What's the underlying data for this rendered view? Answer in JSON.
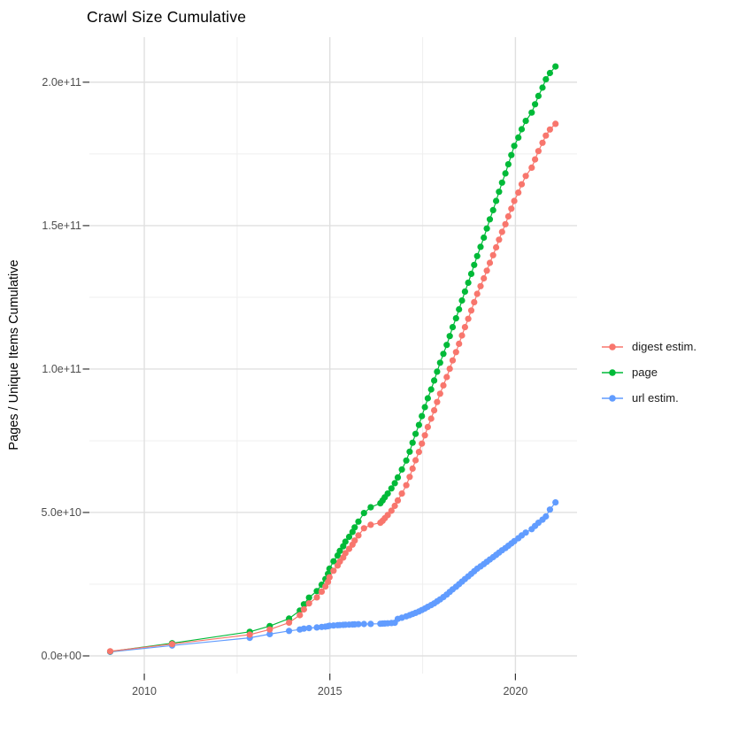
{
  "colors": {
    "background": "#FFFFFF",
    "grid_major": "#E0E0E0",
    "grid_minor": "#EFEFEF",
    "tick_mark": "#333333",
    "axis_text": "#4D4D4D",
    "title_text": "#000000"
  },
  "chart_data": {
    "type": "line",
    "title": "Crawl Size Cumulative",
    "xlabel": "",
    "ylabel": "Pages / Unique Items Cumulative",
    "legend_position": "right",
    "grid": "major+minor",
    "y_unit": "values_e9 are pages/items in billions (1e9)",
    "xlim": [
      2008.52,
      2021.66
    ],
    "ylim_e9": [
      -6.17,
      215.7
    ],
    "x_ticks": [
      {
        "v": 2010,
        "label": "2010"
      },
      {
        "v": 2015,
        "label": "2015"
      },
      {
        "v": 2020,
        "label": "2020"
      }
    ],
    "x_minor_ticks": [
      2012.5,
      2017.5
    ],
    "y_ticks": [
      {
        "v": 0,
        "label": "0.0e+00"
      },
      {
        "v": 50,
        "label": "5.0e+10"
      },
      {
        "v": 100,
        "label": "1.0e+11"
      },
      {
        "v": 150,
        "label": "1.5e+11"
      },
      {
        "v": 200,
        "label": "2.0e+11"
      }
    ],
    "y_minor_ticks_e9": [
      25,
      75,
      125,
      175
    ],
    "x_years": [
      2009.08,
      2010.75,
      2012.84,
      2013.38,
      2013.9,
      2014.19,
      2014.3,
      2014.44,
      2014.65,
      2014.78,
      2014.88,
      2014.95,
      2014.99,
      2015.1,
      2015.21,
      2015.27,
      2015.36,
      2015.42,
      2015.52,
      2015.61,
      2015.67,
      2015.77,
      2015.92,
      2016.1,
      2016.36,
      2016.42,
      2016.48,
      2016.56,
      2016.66,
      2016.75,
      2016.83,
      2016.94,
      2017.06,
      2017.15,
      2017.23,
      2017.31,
      2017.4,
      2017.48,
      2017.56,
      2017.64,
      2017.73,
      2017.81,
      2017.89,
      2017.97,
      2018.06,
      2018.15,
      2018.23,
      2018.31,
      2018.4,
      2018.48,
      2018.56,
      2018.64,
      2018.73,
      2018.81,
      2018.89,
      2018.97,
      2019.06,
      2019.15,
      2019.23,
      2019.31,
      2019.4,
      2019.48,
      2019.56,
      2019.64,
      2019.73,
      2019.81,
      2019.89,
      2019.97,
      2020.08,
      2020.17,
      2020.28,
      2020.44,
      2020.53,
      2020.62,
      2020.73,
      2020.82,
      2020.93,
      2021.08
    ],
    "series": [
      {
        "name": "digest estim.",
        "color": "#F8766D",
        "values_e9": [
          1.6,
          4.1,
          7.4,
          9.2,
          11.6,
          14.2,
          16.2,
          18.3,
          20.4,
          22.4,
          24.2,
          25.8,
          27.4,
          29.7,
          31.5,
          32.9,
          34.3,
          35.8,
          37.3,
          38.8,
          40.2,
          42,
          44.5,
          45.7,
          46.4,
          47.1,
          48,
          49.1,
          50.6,
          52.3,
          54.2,
          56.6,
          59.5,
          62.4,
          65.3,
          68.2,
          71.1,
          74,
          76.9,
          79.8,
          82.7,
          85.6,
          88.5,
          91.4,
          94.3,
          97.2,
          100.1,
          103,
          105.9,
          108.8,
          111.7,
          114.6,
          117.5,
          120.4,
          123.3,
          126.2,
          128.9,
          131.6,
          134.3,
          137,
          139.7,
          142.4,
          145.1,
          147.8,
          150.5,
          153.2,
          155.9,
          158.6,
          161.5,
          164.4,
          167.3,
          170.2,
          173.1,
          176,
          178.9,
          181.4,
          183.5,
          185.5
        ]
      },
      {
        "name": "page",
        "color": "#00BA38",
        "values_e9": [
          1.55,
          4.4,
          8.4,
          10.4,
          13,
          15.8,
          18,
          20.3,
          22.6,
          24.8,
          26.8,
          28.6,
          30.4,
          33,
          35,
          36.6,
          38.2,
          39.8,
          41.5,
          43.2,
          44.8,
          46.8,
          49.8,
          51.8,
          53.2,
          54.2,
          55.3,
          56.6,
          58.4,
          60.2,
          62.2,
          65,
          68.1,
          71.2,
          74.3,
          77.4,
          80.5,
          83.6,
          86.7,
          89.8,
          92.9,
          96,
          99.1,
          102.2,
          105.3,
          108.4,
          111.5,
          114.6,
          117.7,
          120.8,
          123.9,
          127,
          130.1,
          133.2,
          136.3,
          139.4,
          142.6,
          145.8,
          149,
          152.2,
          155.4,
          158.6,
          161.8,
          165,
          168.2,
          171.4,
          174.6,
          177.8,
          180.7,
          183.6,
          186.5,
          189.4,
          192.3,
          195.2,
          198.1,
          201,
          203.2,
          205.5
        ]
      },
      {
        "name": "url estim.",
        "color": "#619CFF",
        "values_e9": [
          1.4,
          3.6,
          6.3,
          7.6,
          8.7,
          9.2,
          9.5,
          9.7,
          9.9,
          10.1,
          10.2,
          10.35,
          10.5,
          10.6,
          10.7,
          10.75,
          10.8,
          10.85,
          10.9,
          10.95,
          11,
          11.05,
          11.1,
          11.15,
          11.2,
          11.25,
          11.3,
          11.35,
          11.45,
          11.55,
          12.9,
          13.3,
          13.8,
          14.2,
          14.6,
          15,
          15.5,
          16,
          16.5,
          17.1,
          17.7,
          18.3,
          19,
          19.7,
          20.5,
          21.4,
          22.3,
          23.2,
          24.1,
          25,
          25.9,
          26.8,
          27.7,
          28.6,
          29.5,
          30.4,
          31.2,
          32,
          32.8,
          33.6,
          34.4,
          35.2,
          36,
          36.8,
          37.6,
          38.4,
          39.2,
          40,
          41,
          42,
          43,
          44.2,
          45.3,
          46.4,
          47.5,
          48.6,
          51,
          53.5
        ]
      }
    ]
  }
}
